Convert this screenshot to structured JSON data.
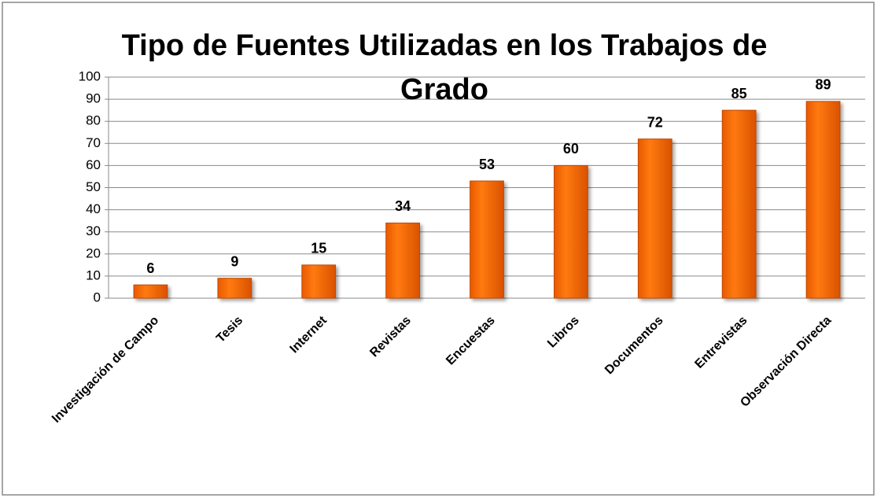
{
  "chart_data": {
    "type": "bar",
    "title": "Tipo de Fuentes Utilizadas en los Trabajos de Grado",
    "categories": [
      "Investigación de Campo",
      "Tesis",
      "Internet",
      "Revistas",
      "Encuestas",
      "Libros",
      "Documentos",
      "Entrevistas",
      "Observación Directa"
    ],
    "values": [
      6,
      9,
      15,
      34,
      53,
      60,
      72,
      85,
      89
    ],
    "color": "#ff6d00",
    "ylim": [
      0,
      100
    ],
    "yticks": [
      0,
      10,
      20,
      30,
      40,
      50,
      60,
      70,
      80,
      90,
      100
    ],
    "grid": true
  }
}
